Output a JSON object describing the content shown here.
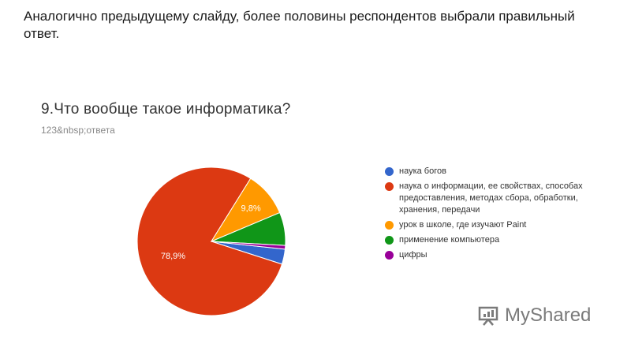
{
  "slide": {
    "heading": "Аналогично предыдущему слайду, более половины респондентов выбрали правильный ответ."
  },
  "question": {
    "title": "9.Что вообще такое информатика?",
    "responses": "123&nbsp;ответа"
  },
  "watermark": {
    "text": "MyShared"
  },
  "chart_data": {
    "type": "pie",
    "title": "9.Что вообще такое информатика?",
    "slices": [
      {
        "label": "наука богов",
        "value": 3.3,
        "color": "#3366cc",
        "data_label": ""
      },
      {
        "label": "наука о информации, ее свойствах, способах предоставления, методах сбора, обработки, хранения, передачи",
        "value": 78.9,
        "color": "#dc3912",
        "data_label": "78,9%"
      },
      {
        "label": "урок в школе, где изучают Paint",
        "value": 9.8,
        "color": "#ff9900",
        "data_label": "9,8%"
      },
      {
        "label": "применение компьютера",
        "value": 7.2,
        "color": "#109618",
        "data_label": ""
      },
      {
        "label": "цифры",
        "value": 0.8,
        "color": "#990099",
        "data_label": ""
      }
    ],
    "legend_placement": "right"
  }
}
